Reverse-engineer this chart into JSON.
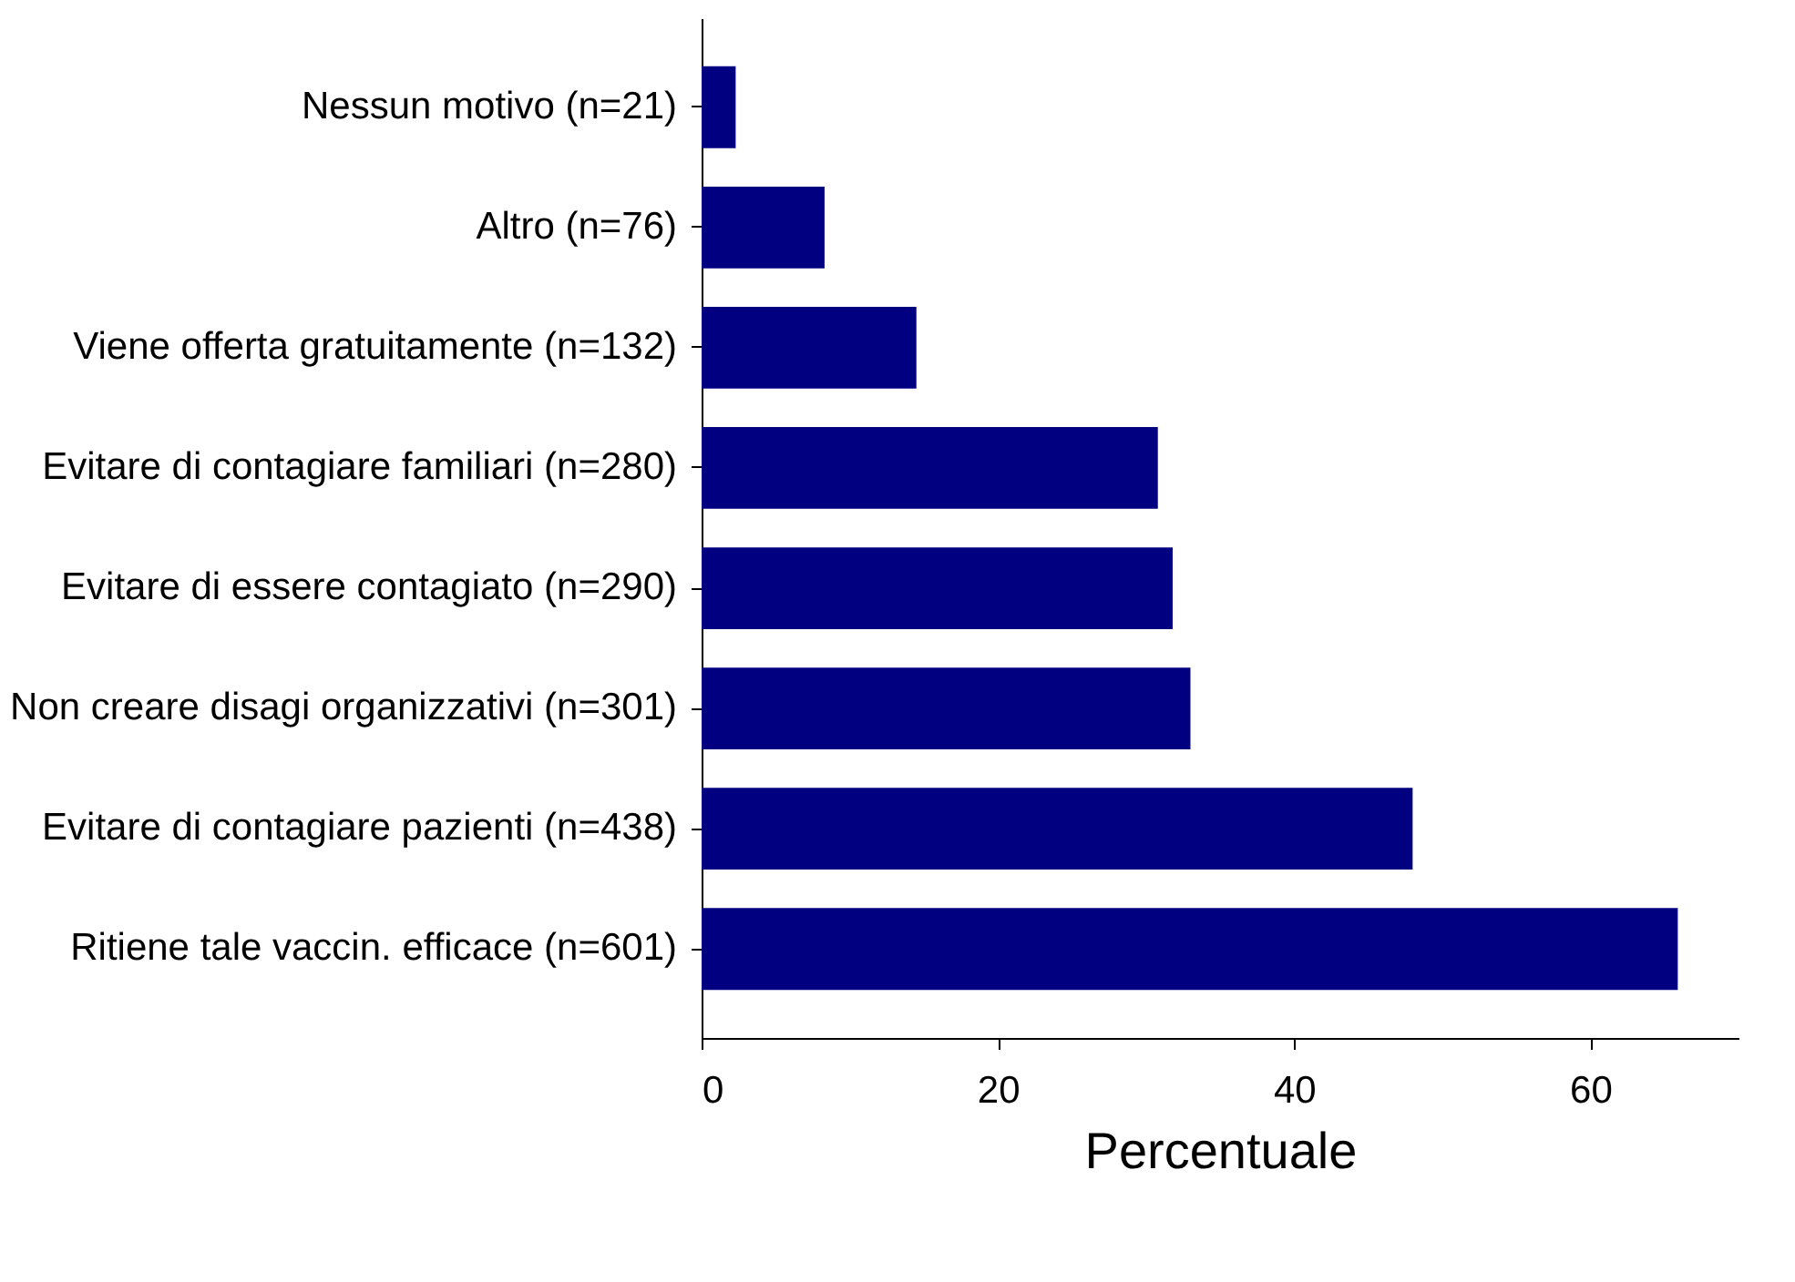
{
  "chart_data": {
    "type": "bar",
    "orientation": "horizontal",
    "xlabel": "Percentuale",
    "categories": [
      "Nessun motivo (n=21)",
      "Altro (n=76) ",
      "Viene offerta gratuitamente  (n=132)",
      "Evitare di contagiare familiari (n=280)",
      "Evitare di essere contagiato (n=290)",
      "Non creare disagi organizzativi (n=301)",
      "Evitare di contagiare pazienti (n=438)",
      "Ritiene tale vaccin. efficace (n=601)"
    ],
    "values": [
      2.3,
      8.3,
      14.5,
      30.8,
      31.8,
      33.0,
      48.0,
      65.9
    ],
    "color": "#000080",
    "xlim": [
      0,
      70
    ],
    "xticks": [
      0,
      20,
      40,
      60
    ],
    "grid": false
  }
}
